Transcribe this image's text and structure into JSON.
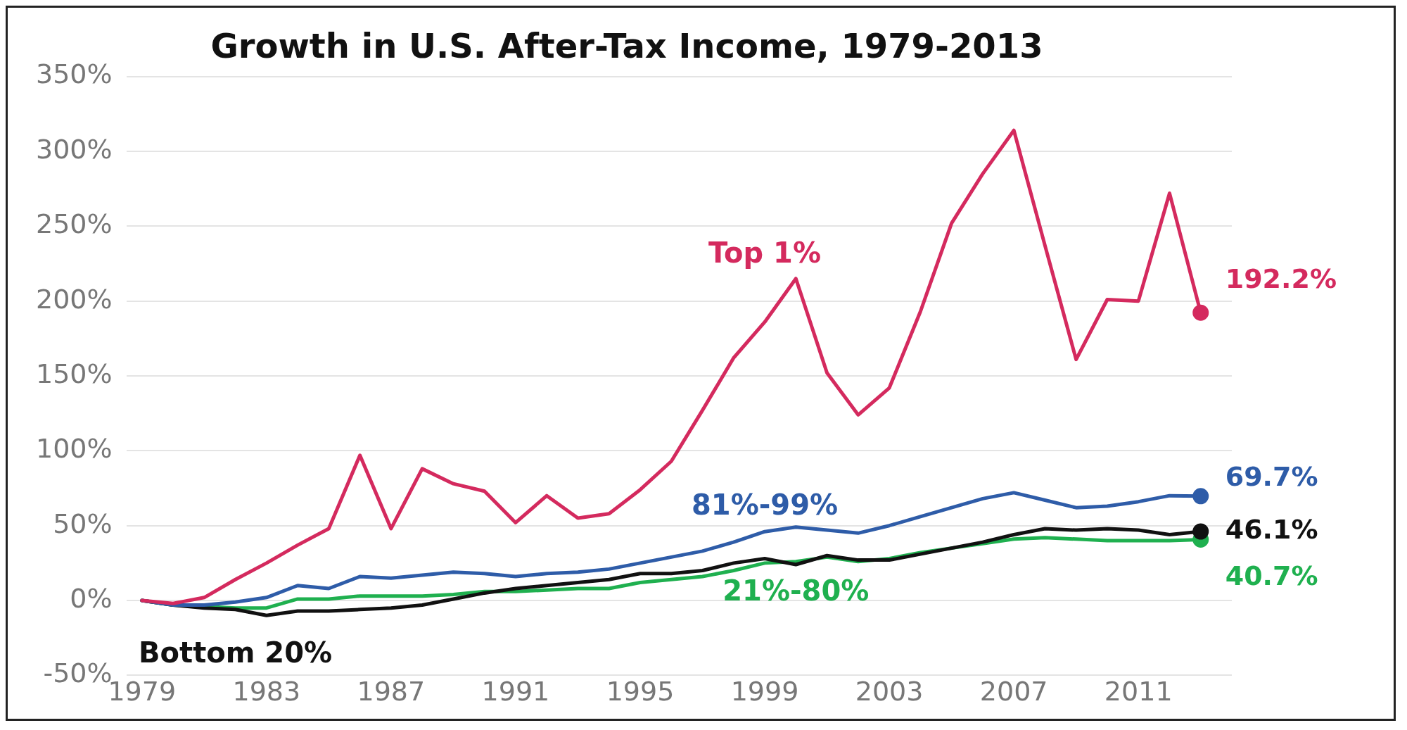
{
  "chart_data": {
    "type": "line",
    "title": "Growth in U.S. After-Tax Income, 1979-2013",
    "x": [
      1979,
      1980,
      1981,
      1982,
      1983,
      1984,
      1985,
      1986,
      1987,
      1988,
      1989,
      1990,
      1991,
      1992,
      1993,
      1994,
      1995,
      1996,
      1997,
      1998,
      1999,
      2000,
      2001,
      2002,
      2003,
      2004,
      2005,
      2006,
      2007,
      2008,
      2009,
      2010,
      2011,
      2012,
      2013
    ],
    "series": [
      {
        "name": "Top 1%",
        "color": "#d42a5e",
        "values": [
          0,
          -2,
          2,
          14,
          25,
          37,
          48,
          97,
          48,
          88,
          78,
          73,
          52,
          70,
          55,
          58,
          74,
          93,
          127,
          162,
          186,
          215,
          152,
          124,
          142,
          193,
          252,
          285,
          314,
          237,
          161,
          201,
          200,
          272,
          192.2
        ],
        "value_labels": [
          null,
          null,
          null,
          null,
          null,
          null,
          null,
          null,
          null,
          null,
          null,
          null,
          null,
          null,
          null,
          null,
          null,
          null,
          null,
          null,
          null,
          null,
          null,
          null,
          null,
          null,
          null,
          null,
          null,
          null,
          null,
          null,
          null,
          null,
          "192.2%"
        ]
      },
      {
        "name": "81%-99%",
        "color": "#2e5ca8",
        "values": [
          0,
          -3,
          -3,
          -1,
          2,
          10,
          8,
          16,
          15,
          17,
          19,
          18,
          16,
          18,
          19,
          21,
          25,
          29,
          33,
          39,
          46,
          49,
          47,
          45,
          50,
          56,
          62,
          68,
          72,
          67,
          62,
          63,
          66,
          70,
          69.7
        ],
        "value_labels": [
          null,
          null,
          null,
          null,
          null,
          null,
          null,
          null,
          null,
          null,
          null,
          null,
          null,
          null,
          null,
          null,
          null,
          null,
          null,
          null,
          null,
          null,
          null,
          null,
          null,
          null,
          null,
          null,
          null,
          null,
          null,
          null,
          null,
          null,
          "69.7%"
        ]
      },
      {
        "name": "Bottom 20%",
        "color": "#111111",
        "values": [
          0,
          -3,
          -5,
          -6,
          -10,
          -7,
          -7,
          -6,
          -5,
          -3,
          1,
          5,
          8,
          10,
          12,
          14,
          18,
          18,
          20,
          25,
          28,
          24,
          30,
          27,
          27,
          31,
          35,
          39,
          44,
          48,
          47,
          48,
          47,
          44,
          46.1
        ],
        "value_labels": [
          null,
          null,
          null,
          null,
          null,
          null,
          null,
          null,
          null,
          null,
          null,
          null,
          null,
          null,
          null,
          null,
          null,
          null,
          null,
          null,
          null,
          null,
          null,
          null,
          null,
          null,
          null,
          null,
          null,
          null,
          null,
          null,
          null,
          null,
          "46.1%"
        ]
      },
      {
        "name": "21%-80%",
        "color": "#1fb04f",
        "values": [
          0,
          -3,
          -4,
          -5,
          -5,
          1,
          1,
          3,
          3,
          3,
          4,
          6,
          6,
          7,
          8,
          8,
          12,
          14,
          16,
          20,
          25,
          26,
          29,
          26,
          28,
          32,
          35,
          38,
          41,
          42,
          41,
          40,
          40,
          40,
          40.7
        ],
        "value_labels": [
          null,
          null,
          null,
          null,
          null,
          null,
          null,
          null,
          null,
          null,
          null,
          null,
          null,
          null,
          null,
          null,
          null,
          null,
          null,
          null,
          null,
          null,
          null,
          null,
          null,
          null,
          null,
          null,
          null,
          null,
          null,
          null,
          null,
          null,
          "40.7%"
        ]
      }
    ],
    "xlim": [
      1978.5,
      2014
    ],
    "xticks": [
      1979,
      1983,
      1987,
      1991,
      1995,
      1999,
      2003,
      2007,
      2011
    ],
    "ylim": [
      -50,
      350
    ],
    "yticks": [
      {
        "value": -50,
        "label": "-50%"
      },
      {
        "value": 0,
        "label": "0%"
      },
      {
        "value": 50,
        "label": "50%"
      },
      {
        "value": 100,
        "label": "100%"
      },
      {
        "value": 150,
        "label": "150%"
      },
      {
        "value": 200,
        "label": "200%"
      },
      {
        "value": 250,
        "label": "250%"
      },
      {
        "value": 300,
        "label": "300%"
      },
      {
        "value": 350,
        "label": "350%"
      }
    ],
    "grid": "y",
    "legend": false
  }
}
